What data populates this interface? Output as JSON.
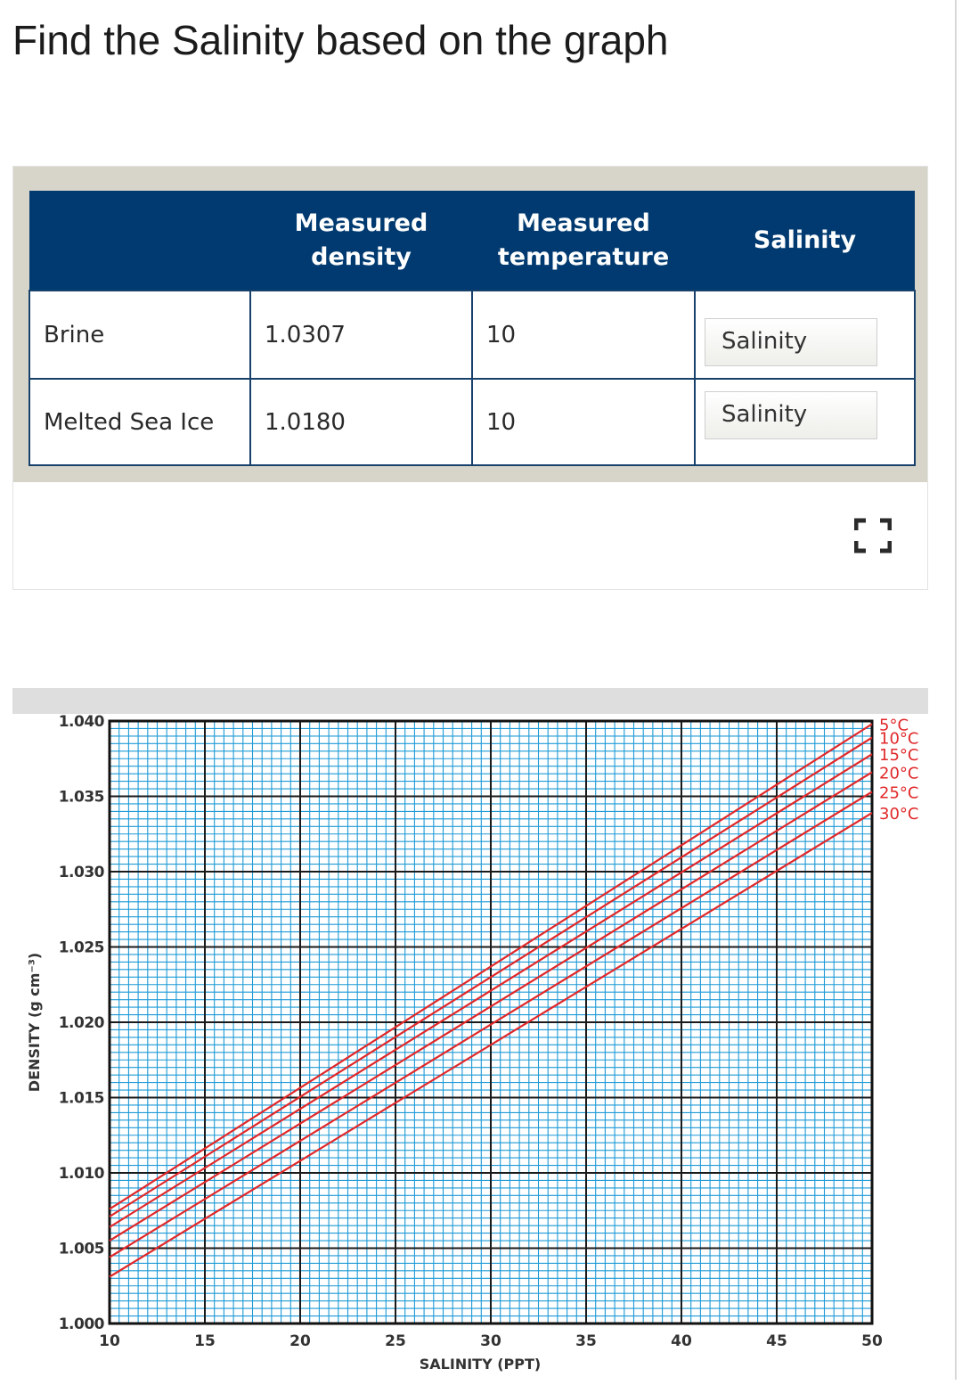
{
  "question": {
    "title": "Find the Salinity based on the graph"
  },
  "table": {
    "headers": [
      "",
      "Measured density",
      "Measured temperature",
      "Salinity"
    ],
    "rows": [
      {
        "sample": "Brine",
        "density": "1.0307",
        "temperature": "10",
        "salinity_placeholder": "Salinity"
      },
      {
        "sample": "Melted Sea Ice",
        "density": "1.0180",
        "temperature": "10",
        "salinity_placeholder": "Salinity"
      }
    ]
  },
  "icons": {
    "expand": "expand-icon"
  },
  "colors": {
    "header_bg": "#003a70",
    "curve": "#e0282a",
    "grid": "#1e9ad6"
  },
  "chart_data": {
    "type": "line",
    "xlabel": "SALINITY (PPT)",
    "ylabel": "DENSITY (g cm⁻³)",
    "xlim": [
      10,
      50
    ],
    "ylim": [
      1.0,
      1.04
    ],
    "x_ticks": [
      "10",
      "15",
      "20",
      "25",
      "30",
      "35",
      "40",
      "45",
      "50"
    ],
    "y_ticks": [
      "1.000",
      "1.005",
      "1.010",
      "1.015",
      "1.020",
      "1.025",
      "1.030",
      "1.035",
      "1.040"
    ],
    "grid": true,
    "legend": "right",
    "series": [
      {
        "name": "5°C",
        "x": [
          10,
          50
        ],
        "y": [
          1.0076,
          1.0398
        ]
      },
      {
        "name": "10°C",
        "x": [
          10,
          50
        ],
        "y": [
          1.0071,
          1.0389
        ]
      },
      {
        "name": "15°C",
        "x": [
          10,
          50
        ],
        "y": [
          1.0064,
          1.0378
        ]
      },
      {
        "name": "20°C",
        "x": [
          10,
          50
        ],
        "y": [
          1.0055,
          1.0366
        ]
      },
      {
        "name": "25°C",
        "x": [
          10,
          50
        ],
        "y": [
          1.0044,
          1.0353
        ]
      },
      {
        "name": "30°C",
        "x": [
          10,
          50
        ],
        "y": [
          1.0031,
          1.0339
        ]
      }
    ]
  }
}
